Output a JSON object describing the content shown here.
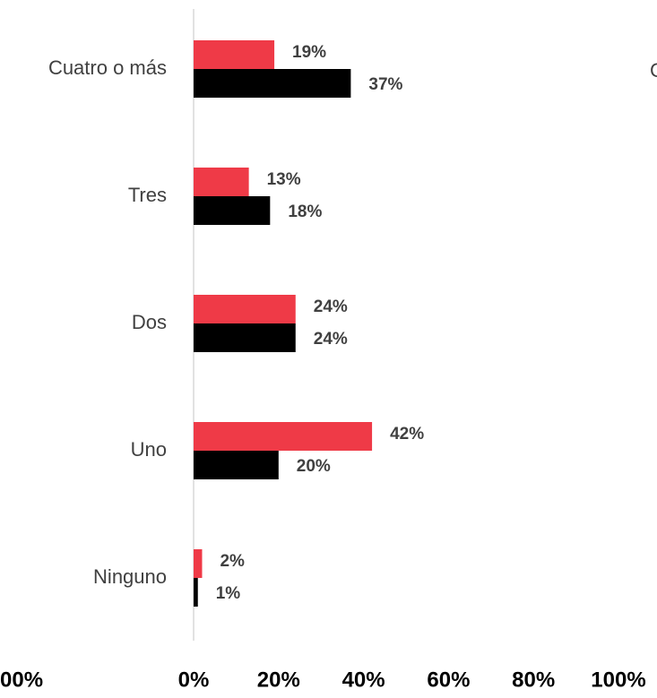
{
  "chart_data": {
    "type": "barh",
    "categories": [
      "Cuatro o más",
      "Tres",
      "Dos",
      "Uno",
      "Ninguno"
    ],
    "series": [
      {
        "color": "#ef3a47",
        "values": [
          19,
          13,
          24,
          42,
          2
        ],
        "value_labels": [
          "19%",
          "13%",
          "24%",
          "42%",
          "2%"
        ]
      },
      {
        "color": "#000000",
        "values": [
          37,
          18,
          24,
          20,
          1
        ],
        "value_labels": [
          "37%",
          "18%",
          "24%",
          "20%",
          "1%"
        ]
      }
    ],
    "xlim": [
      0,
      100
    ],
    "xticks": [
      {
        "value": 0,
        "label": "0%"
      },
      {
        "value": 20,
        "label": "20%"
      },
      {
        "value": 40,
        "label": "40%"
      },
      {
        "value": 60,
        "label": "60%"
      },
      {
        "value": 80,
        "label": "80%"
      },
      {
        "value": 100,
        "label": "100%"
      }
    ],
    "annotations": [
      "00%",
      "C"
    ]
  }
}
